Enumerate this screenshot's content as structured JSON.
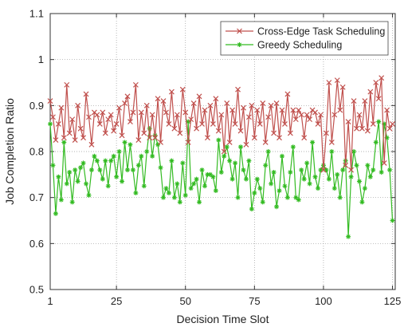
{
  "chart_data": {
    "type": "line",
    "title": "",
    "xlabel": "Decision Time Slot",
    "ylabel": "Job Completion Ratio",
    "xlim": [
      1,
      126
    ],
    "ylim": [
      0.5,
      1.1
    ],
    "xticks": [
      1,
      25,
      50,
      75,
      100,
      125
    ],
    "xtick_labels": [
      "1",
      "25",
      "50",
      "75",
      "100",
      "125"
    ],
    "yticks": [
      0.5,
      0.6,
      0.7,
      0.8,
      0.9,
      1.0,
      1.1
    ],
    "ytick_labels": [
      "0.5",
      "0.6",
      "0.7",
      "0.8",
      "0.9",
      "1",
      "1.1"
    ],
    "grid": "dotted",
    "legend_position": "top-right",
    "series": [
      {
        "name": "Cross-Edge Task Scheduling",
        "color": "#c0504d",
        "marker": "x",
        "values": [
          0.91,
          0.875,
          0.825,
          0.86,
          0.895,
          0.83,
          0.945,
          0.84,
          0.87,
          0.825,
          0.9,
          0.85,
          0.83,
          0.925,
          0.875,
          0.815,
          0.885,
          0.88,
          0.86,
          0.885,
          0.84,
          0.87,
          0.88,
          0.845,
          0.86,
          0.895,
          0.835,
          0.905,
          0.92,
          0.865,
          0.885,
          0.945,
          0.825,
          0.885,
          0.84,
          0.9,
          0.83,
          0.88,
          0.83,
          0.915,
          0.82,
          0.91,
          0.885,
          0.86,
          0.93,
          0.85,
          0.88,
          0.84,
          0.935,
          0.885,
          0.82,
          0.87,
          0.905,
          0.85,
          0.92,
          0.86,
          0.89,
          0.83,
          0.9,
          0.86,
          0.915,
          0.845,
          0.88,
          0.8,
          0.905,
          0.82,
          0.89,
          0.86,
          0.935,
          0.845,
          0.895,
          0.815,
          0.875,
          0.9,
          0.83,
          0.89,
          0.86,
          0.905,
          0.82,
          0.875,
          0.9,
          0.84,
          0.905,
          0.83,
          0.89,
          0.86,
          0.925,
          0.84,
          0.89,
          0.87,
          0.89,
          0.88,
          0.83,
          0.88,
          0.87,
          0.89,
          0.885,
          0.86,
          0.88,
          0.76,
          0.84,
          0.95,
          0.82,
          0.88,
          0.955,
          0.89,
          0.94,
          0.77,
          0.865,
          0.76,
          0.91,
          0.85,
          0.88,
          0.85,
          0.91,
          0.845,
          0.93,
          0.86,
          0.95,
          0.915,
          0.96,
          0.775,
          0.89,
          0.85,
          0.86
        ]
      },
      {
        "name": "Greedy Scheduling",
        "color": "#33bb22",
        "marker": "*",
        "values": [
          0.86,
          0.77,
          0.665,
          0.745,
          0.695,
          0.82,
          0.73,
          0.755,
          0.69,
          0.76,
          0.735,
          0.765,
          0.775,
          0.73,
          0.705,
          0.76,
          0.79,
          0.78,
          0.76,
          0.74,
          0.78,
          0.725,
          0.78,
          0.79,
          0.745,
          0.8,
          0.735,
          0.82,
          0.76,
          0.815,
          0.76,
          0.71,
          0.77,
          0.79,
          0.725,
          0.8,
          0.85,
          0.79,
          0.835,
          0.815,
          0.765,
          0.7,
          0.72,
          0.71,
          0.78,
          0.7,
          0.73,
          0.69,
          0.775,
          0.705,
          0.865,
          0.72,
          0.73,
          0.74,
          0.69,
          0.76,
          0.725,
          0.75,
          0.75,
          0.745,
          0.715,
          0.825,
          0.755,
          0.79,
          0.81,
          0.78,
          0.74,
          0.775,
          0.7,
          0.81,
          0.76,
          0.74,
          0.78,
          0.675,
          0.71,
          0.74,
          0.72,
          0.69,
          0.77,
          0.8,
          0.73,
          0.755,
          0.68,
          0.715,
          0.79,
          0.725,
          0.7,
          0.755,
          0.81,
          0.7,
          0.695,
          0.76,
          0.74,
          0.775,
          0.73,
          0.82,
          0.745,
          0.72,
          0.76,
          0.77,
          0.76,
          0.74,
          0.8,
          0.72,
          0.75,
          0.7,
          0.76,
          0.78,
          0.615,
          0.745,
          0.8,
          0.77,
          0.735,
          0.69,
          0.72,
          0.77,
          0.745,
          0.76,
          0.82,
          0.865,
          0.755,
          0.86,
          0.83,
          0.76,
          0.65
        ]
      }
    ]
  }
}
